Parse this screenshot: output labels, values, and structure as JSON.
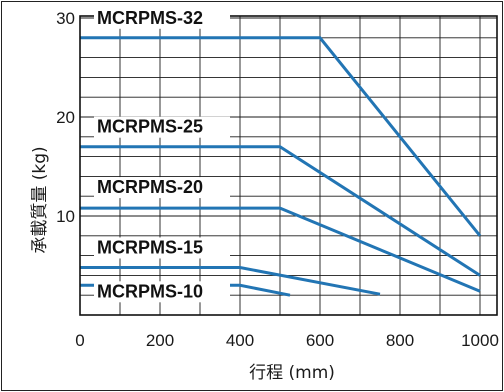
{
  "chart_data": {
    "type": "line",
    "xlabel": "行程 (mm)",
    "ylabel": "承載質量 (kg)",
    "xlim": [
      0,
      1040
    ],
    "ylim": [
      0,
      30.2
    ],
    "x_ticks": [
      0,
      200,
      400,
      600,
      800,
      1000
    ],
    "y_ticks": [
      10,
      20,
      30
    ],
    "grid": {
      "x_step": 100,
      "y_step": 2
    },
    "line_color": "#2275b4",
    "series": [
      {
        "name": "MCRPMS-32",
        "x": [
          0,
          600,
          1000
        ],
        "y": [
          28,
          28,
          8
        ]
      },
      {
        "name": "MCRPMS-25",
        "x": [
          0,
          500,
          1000
        ],
        "y": [
          17,
          17,
          4
        ]
      },
      {
        "name": "MCRPMS-20",
        "x": [
          0,
          500,
          1000
        ],
        "y": [
          10.8,
          10.8,
          2.4
        ]
      },
      {
        "name": "MCRPMS-15",
        "x": [
          0,
          400,
          750
        ],
        "y": [
          4.8,
          4.8,
          2.1
        ]
      },
      {
        "name": "MCRPMS-10",
        "x": [
          0,
          400,
          525
        ],
        "y": [
          3,
          3,
          2
        ]
      }
    ]
  }
}
